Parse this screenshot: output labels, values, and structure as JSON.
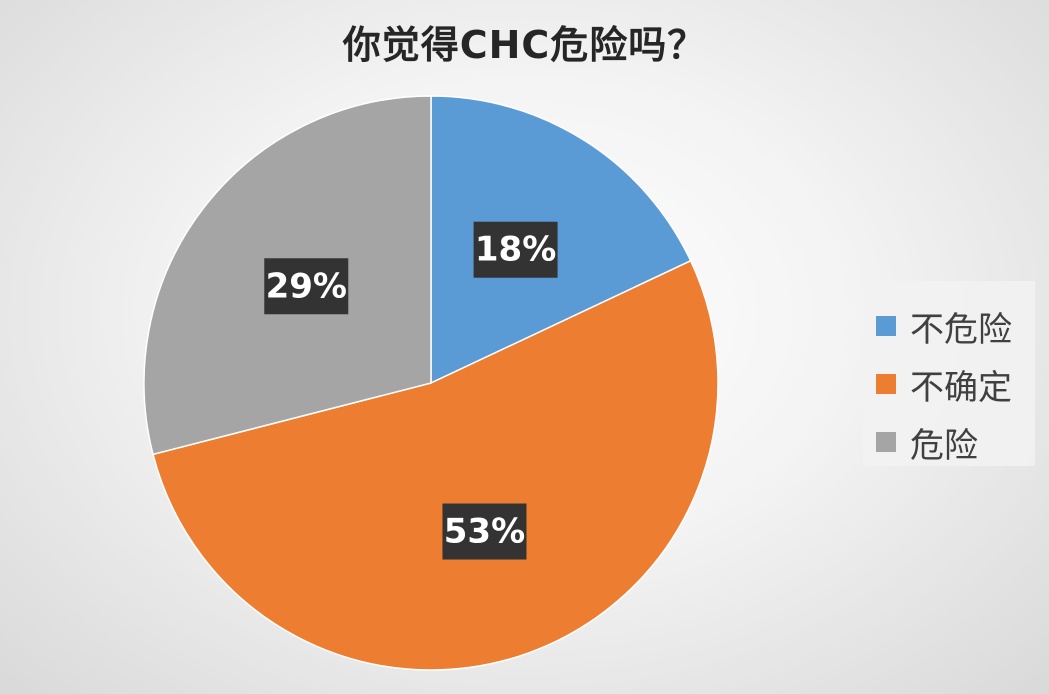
{
  "chart_data": {
    "type": "pie",
    "title": "你觉得CHC危险吗？",
    "categories": [
      "不危险",
      "不确定",
      "危险"
    ],
    "values": [
      18,
      53,
      29
    ],
    "data_labels": [
      "18%",
      "53%",
      "29%"
    ],
    "colors": [
      "#5b9bd5",
      "#ed7d31",
      "#a5a5a5"
    ],
    "start_angle_deg": 0,
    "direction": "clockwise",
    "legend_position": "right"
  }
}
